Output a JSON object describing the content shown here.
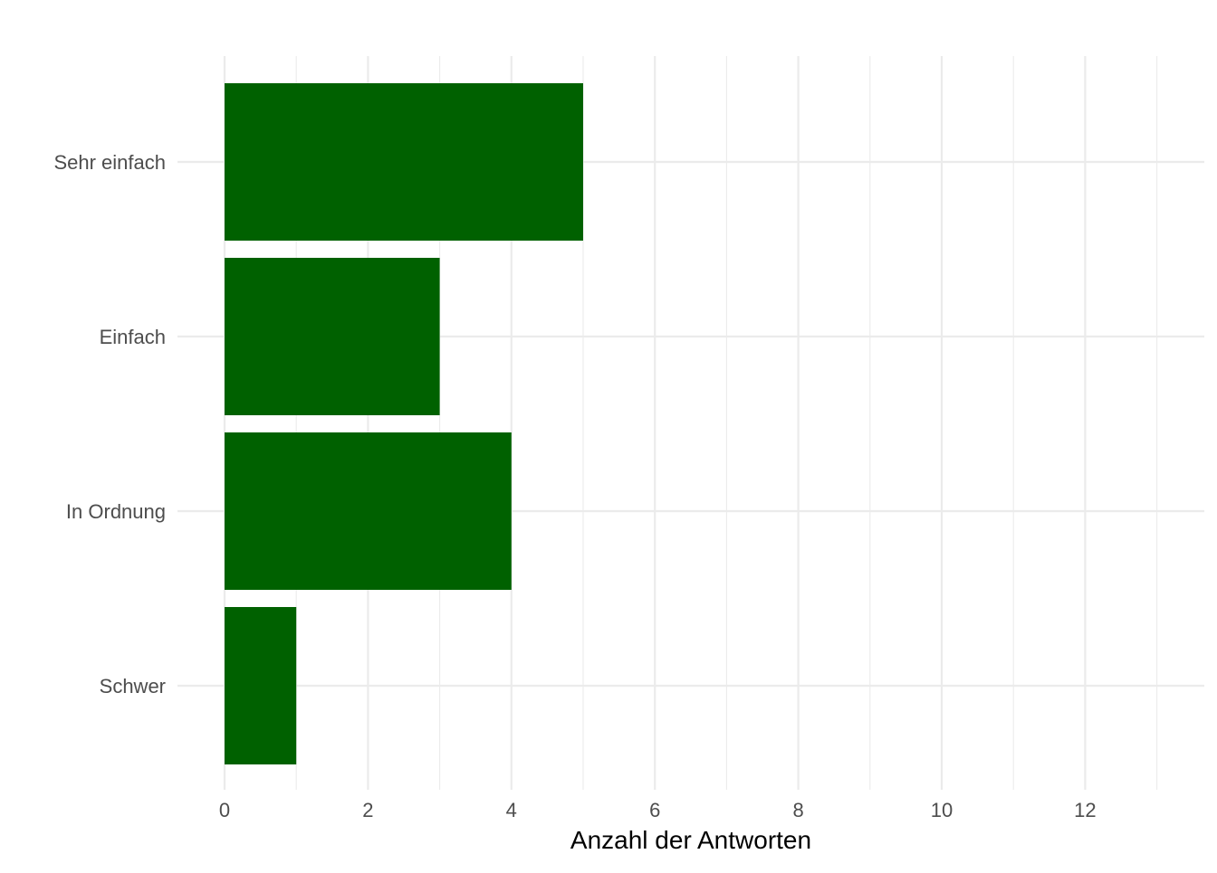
{
  "chart_data": {
    "type": "bar",
    "orientation": "horizontal",
    "categories": [
      "Sehr einfach",
      "Einfach",
      "In Ordnung",
      "Schwer"
    ],
    "values": [
      5,
      3,
      4,
      1
    ],
    "xlabel": "Anzahl der Antworten",
    "ylabel": "",
    "xlim": [
      0,
      13.5
    ],
    "xticks": [
      0,
      2,
      4,
      6,
      8,
      10,
      12
    ],
    "grid": true,
    "bar_color": "#006100",
    "background": "#ffffff"
  }
}
